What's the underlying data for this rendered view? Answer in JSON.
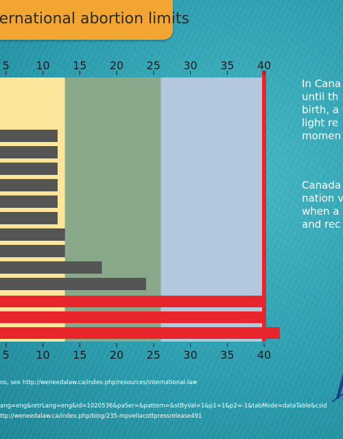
{
  "title": "ternational abortion limits",
  "chart_data": {
    "type": "bar",
    "orientation": "horizontal",
    "x_ticks_top": [
      "5",
      "10",
      "15",
      "20",
      "25",
      "30",
      "35",
      "40"
    ],
    "x_ticks_bottom": [
      "5",
      "10",
      "15",
      "20",
      "25",
      "30",
      "35",
      "40"
    ],
    "xlim": [
      0,
      40
    ],
    "bands": [
      {
        "from": 0,
        "to": 13,
        "color": "#fde59a"
      },
      {
        "from": 13,
        "to": 26,
        "color": "#8aa88a"
      },
      {
        "from": 26,
        "to": 40,
        "color": "#b3c8dc"
      }
    ],
    "bar_color": "#555555",
    "values": [
      12,
      12,
      12,
      12,
      12,
      12,
      13,
      13,
      18,
      24
    ],
    "unlimited_rows": 3,
    "limit_line": 40,
    "limit_color": "#e8242c"
  },
  "side_text": {
    "para1": [
      "In Cana",
      "until th",
      "birth, a",
      "light re",
      "momen"
    ],
    "para2": [
      "Canada",
      "nation v",
      "when a",
      "and rec"
    ]
  },
  "footnotes": {
    "line1": "ns, see http://weneedalaw.ca/index.php/resources/international-law",
    "line2": "ang=eng&retrLang=eng&id=1020536&paSer=&pattern=&stByVal=1&p1=1&p2=-1&tabMode=dataTable&csid",
    "line3": "ttp://weneedalaw.ca/index.php/blog/235-mpvellacottpressrelease491"
  }
}
